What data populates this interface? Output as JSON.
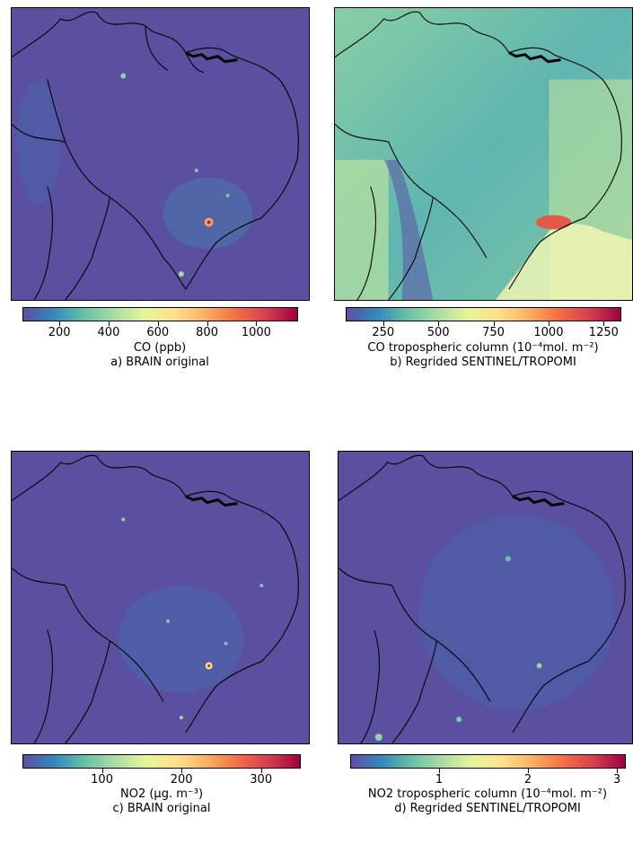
{
  "panels": [
    {
      "id": "a",
      "colorbar_label": "CO (ppb)",
      "caption": "a) BRAIN original",
      "ticks": [
        "200",
        "400",
        "600",
        "800",
        "1000"
      ],
      "tick_values": [
        200,
        400,
        600,
        800,
        1000
      ],
      "range": [
        50,
        1170
      ],
      "map_style": "dark"
    },
    {
      "id": "b",
      "colorbar_label": "CO tropospheric column (10⁻⁴mol. m⁻²)",
      "caption": "b) Regrided SENTINEL/TROPOMI",
      "ticks": [
        "250",
        "500",
        "750",
        "1000",
        "1250"
      ],
      "tick_values": [
        250,
        500,
        750,
        1000,
        1250
      ],
      "range": [
        80,
        1330
      ],
      "map_style": "bright"
    },
    {
      "id": "c",
      "colorbar_label": "NO2 (μg. m⁻³)",
      "caption": "c) BRAIN original",
      "ticks": [
        "100",
        "200",
        "300"
      ],
      "tick_values": [
        100,
        200,
        300
      ],
      "range": [
        0,
        350
      ],
      "map_style": "dark"
    },
    {
      "id": "d",
      "colorbar_label": "NO2 tropospheric column (10⁻⁴mol. m⁻²)",
      "caption": "d) Regrided SENTINEL/TROPOMI",
      "ticks": [
        "1",
        "2",
        "3"
      ],
      "tick_values": [
        1,
        2,
        3
      ],
      "range": [
        0,
        3.1
      ],
      "map_style": "dark"
    }
  ],
  "colors": {
    "background_dark": "#5a4f9c",
    "spectral_stops": [
      "#5e4fa2",
      "#3288bd",
      "#66c2a5",
      "#abdda4",
      "#e6f598",
      "#fee08b",
      "#fdae61",
      "#f46d43",
      "#d53e4f",
      "#9e0142"
    ]
  }
}
